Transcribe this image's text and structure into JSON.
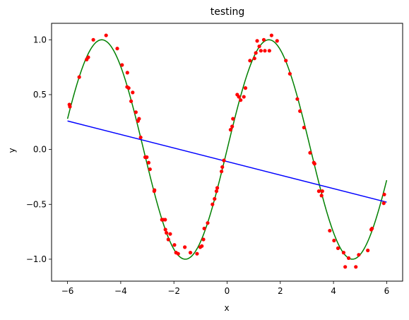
{
  "chart_data": {
    "type": "line",
    "title": "testing",
    "xlabel": "x",
    "ylabel": "y",
    "xlim": [
      -6.6,
      6.6
    ],
    "ylim": [
      -1.2,
      1.15
    ],
    "xticks": [
      -6,
      -4,
      -2,
      0,
      2,
      4,
      6
    ],
    "yticks": [
      -1.0,
      -0.5,
      0.0,
      0.5,
      1.0
    ],
    "xtick_labels": [
      "−6",
      "−4",
      "−2",
      "0",
      "2",
      "4",
      "6"
    ],
    "ytick_labels": [
      "−1.0",
      "−0.5",
      "0.0",
      "0.5",
      "1.0"
    ],
    "grid": false,
    "series": [
      {
        "kind": "scatter",
        "color": "#ff0000",
        "points": [
          [
            -5.93,
            0.41
          ],
          [
            -5.91,
            0.39
          ],
          [
            -5.56,
            0.66
          ],
          [
            -5.28,
            0.82
          ],
          [
            -5.22,
            0.84
          ],
          [
            -5.03,
            1.0
          ],
          [
            -4.55,
            1.04
          ],
          [
            -4.13,
            0.92
          ],
          [
            -3.95,
            0.77
          ],
          [
            -3.75,
            0.7
          ],
          [
            -3.76,
            0.57
          ],
          [
            -3.7,
            0.56
          ],
          [
            -3.61,
            0.44
          ],
          [
            -3.55,
            0.52
          ],
          [
            -3.43,
            0.34
          ],
          [
            -3.35,
            0.26
          ],
          [
            -3.31,
            0.28
          ],
          [
            -3.25,
            0.11
          ],
          [
            -3.08,
            -0.07
          ],
          [
            -3.02,
            -0.07
          ],
          [
            -2.95,
            -0.12
          ],
          [
            -2.9,
            -0.18
          ],
          [
            -2.74,
            -0.38
          ],
          [
            -2.73,
            -0.37
          ],
          [
            -2.45,
            -0.64
          ],
          [
            -2.41,
            -0.64
          ],
          [
            -2.33,
            -0.64
          ],
          [
            -2.32,
            -0.73
          ],
          [
            -2.28,
            -0.76
          ],
          [
            -2.21,
            -0.82
          ],
          [
            -2.14,
            -0.77
          ],
          [
            -1.98,
            -0.87
          ],
          [
            -1.92,
            -0.94
          ],
          [
            -1.84,
            -0.95
          ],
          [
            -1.59,
            -0.89
          ],
          [
            -1.38,
            -0.94
          ],
          [
            -1.13,
            -0.95
          ],
          [
            -1.01,
            -0.89
          ],
          [
            -0.95,
            -0.88
          ],
          [
            -0.89,
            -0.82
          ],
          [
            -0.86,
            -0.72
          ],
          [
            -0.73,
            -0.67
          ],
          [
            -0.55,
            -0.5
          ],
          [
            -0.47,
            -0.45
          ],
          [
            -0.4,
            -0.38
          ],
          [
            -0.37,
            -0.35
          ],
          [
            -0.21,
            -0.2
          ],
          [
            -0.18,
            -0.16
          ],
          [
            -0.12,
            -0.1
          ],
          [
            0.13,
            0.18
          ],
          [
            0.19,
            0.21
          ],
          [
            0.22,
            0.28
          ],
          [
            0.38,
            0.5
          ],
          [
            0.44,
            0.48
          ],
          [
            0.51,
            0.45
          ],
          [
            0.63,
            0.48
          ],
          [
            0.69,
            0.56
          ],
          [
            0.86,
            0.81
          ],
          [
            1.03,
            0.83
          ],
          [
            1.08,
            0.88
          ],
          [
            1.13,
            0.99
          ],
          [
            1.21,
            0.94
          ],
          [
            1.27,
            0.9
          ],
          [
            1.38,
            1.0
          ],
          [
            1.42,
            0.9
          ],
          [
            1.59,
            0.9
          ],
          [
            1.67,
            1.04
          ],
          [
            1.88,
            0.99
          ],
          [
            2.21,
            0.81
          ],
          [
            2.36,
            0.69
          ],
          [
            2.64,
            0.46
          ],
          [
            2.74,
            0.35
          ],
          [
            2.89,
            0.2
          ],
          [
            3.12,
            -0.03
          ],
          [
            3.26,
            -0.12
          ],
          [
            3.29,
            -0.13
          ],
          [
            3.45,
            -0.38
          ],
          [
            3.58,
            -0.38
          ],
          [
            3.55,
            -0.42
          ],
          [
            3.86,
            -0.74
          ],
          [
            4.02,
            -0.83
          ],
          [
            4.17,
            -0.9
          ],
          [
            4.38,
            -0.94
          ],
          [
            4.44,
            -1.07
          ],
          [
            4.57,
            -0.99
          ],
          [
            4.84,
            -1.07
          ],
          [
            4.95,
            -0.96
          ],
          [
            5.29,
            -0.92
          ],
          [
            5.42,
            -0.73
          ],
          [
            5.45,
            -0.72
          ],
          [
            5.89,
            -0.49
          ],
          [
            5.91,
            -0.41
          ]
        ]
      },
      {
        "kind": "line",
        "color": "#008000",
        "function": "sin",
        "domain": [
          -6,
          6
        ]
      },
      {
        "kind": "line",
        "color": "#0000ff",
        "points": [
          [
            -6,
            0.26
          ],
          [
            6,
            -0.48
          ]
        ]
      }
    ]
  }
}
